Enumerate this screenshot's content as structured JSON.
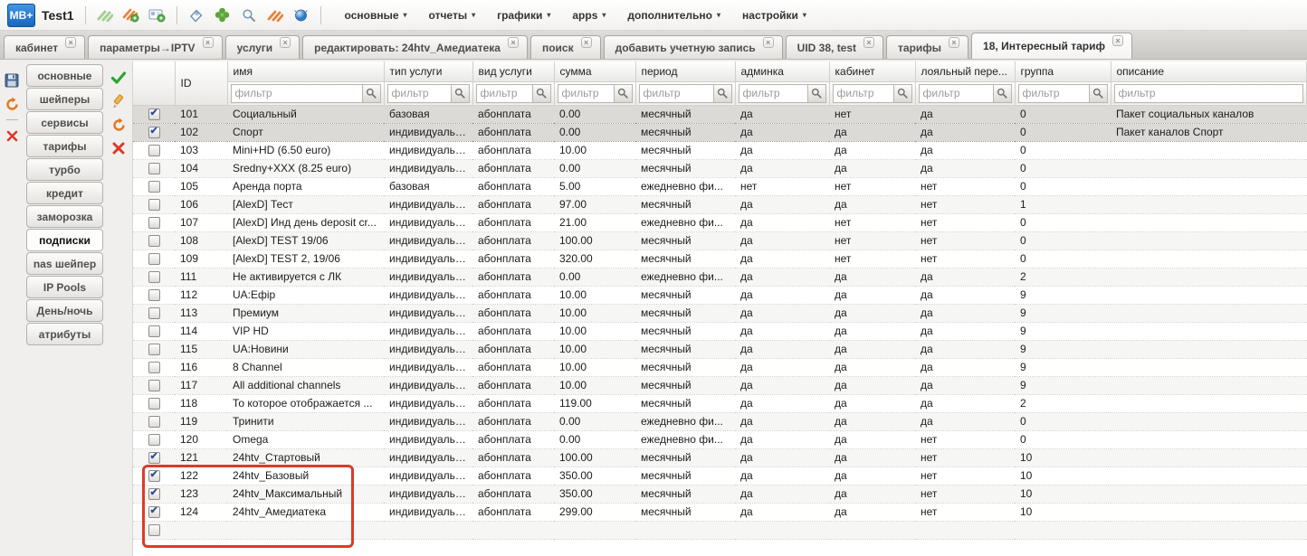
{
  "toolbar": {
    "logo_text": "MB+",
    "title": "Test1",
    "icons": [
      "stats-green-icon",
      "shaper-add-icon",
      "add-account-icon",
      "tag-icon",
      "clover-icon",
      "search-icon",
      "traffic-orange-icon",
      "network-globe-icon"
    ],
    "menus": [
      {
        "label": "основные"
      },
      {
        "label": "отчеты"
      },
      {
        "label": "графики"
      },
      {
        "label": "apps"
      },
      {
        "label": "дополнительно"
      },
      {
        "label": "настройки"
      }
    ]
  },
  "tabs": [
    {
      "label": "кабинет",
      "active": false
    },
    {
      "label": "параметры→IPTV",
      "active": false
    },
    {
      "label": "услуги",
      "active": false
    },
    {
      "label": "редактировать: 24htv_Амедиатека",
      "active": false
    },
    {
      "label": "поиск",
      "active": false
    },
    {
      "label": "добавить учетную запись",
      "active": false
    },
    {
      "label": "UID 38, test",
      "active": false
    },
    {
      "label": "тарифы",
      "active": false
    },
    {
      "label": "18, Интересный тариф",
      "active": true
    }
  ],
  "left_actions": [
    "save-icon",
    "refresh-icon",
    "delete-icon"
  ],
  "sidebar": {
    "items": [
      {
        "label": "основные",
        "active": false
      },
      {
        "label": "шейперы",
        "active": false
      },
      {
        "label": "сервисы",
        "active": false
      },
      {
        "label": "тарифы",
        "active": false
      },
      {
        "label": "турбо",
        "active": false
      },
      {
        "label": "кредит",
        "active": false
      },
      {
        "label": "заморозка",
        "active": false
      },
      {
        "label": "подписки",
        "active": true
      },
      {
        "label": "nas шейпер",
        "active": false
      },
      {
        "label": "IP Pools",
        "active": false
      },
      {
        "label": "День/ночь",
        "active": false
      },
      {
        "label": "атрибуты",
        "active": false
      }
    ]
  },
  "row_actions": [
    "apply-check-icon",
    "edit-pencil-icon",
    "refresh-icon",
    "delete-cross-icon"
  ],
  "table": {
    "filter_placeholder": "фильтр",
    "columns": [
      {
        "label": "",
        "filter": false
      },
      {
        "label": "ID",
        "filter": false
      },
      {
        "label": "имя",
        "filter": true,
        "button": true
      },
      {
        "label": "тип услуги",
        "filter": true,
        "button": true
      },
      {
        "label": "вид услуги",
        "filter": true,
        "button": true
      },
      {
        "label": "сумма",
        "filter": true,
        "button": true
      },
      {
        "label": "период",
        "filter": true,
        "button": true
      },
      {
        "label": "админка",
        "filter": true,
        "button": true
      },
      {
        "label": "кабинет",
        "filter": true,
        "button": true
      },
      {
        "label": "лояльный пере...",
        "filter": true,
        "button": true
      },
      {
        "label": "группа",
        "filter": true,
        "button": true
      },
      {
        "label": "описание",
        "filter": true,
        "button": false
      }
    ],
    "rows": [
      {
        "checked": true,
        "selected": true,
        "annotated": false,
        "cells": [
          "101",
          "Социальный",
          "базовая",
          "абонплата",
          "0.00",
          "месячный",
          "да",
          "нет",
          "да",
          "0",
          "Пакет социальных каналов"
        ]
      },
      {
        "checked": true,
        "selected": true,
        "annotated": false,
        "cells": [
          "102",
          "Спорт",
          "индивидуальная",
          "абонплата",
          "0.00",
          "месячный",
          "да",
          "да",
          "да",
          "0",
          "Пакет каналов Спорт"
        ]
      },
      {
        "checked": false,
        "selected": false,
        "annotated": false,
        "cells": [
          "103",
          "Mini+HD (6.50 euro)",
          "индивидуальная",
          "абонплата",
          "10.00",
          "месячный",
          "да",
          "да",
          "да",
          "0",
          ""
        ]
      },
      {
        "checked": false,
        "selected": false,
        "annotated": false,
        "cells": [
          "104",
          "Sredny+XXX (8.25 euro)",
          "индивидуальная",
          "абонплата",
          "0.00",
          "месячный",
          "да",
          "да",
          "да",
          "0",
          ""
        ]
      },
      {
        "checked": false,
        "selected": false,
        "annotated": false,
        "cells": [
          "105",
          "Аренда порта",
          "базовая",
          "абонплата",
          "5.00",
          "ежедневно фи...",
          "нет",
          "нет",
          "нет",
          "0",
          ""
        ]
      },
      {
        "checked": false,
        "selected": false,
        "annotated": false,
        "cells": [
          "106",
          "[AlexD] Тест",
          "индивидуальная",
          "абонплата",
          "97.00",
          "месячный",
          "да",
          "да",
          "нет",
          "1",
          ""
        ]
      },
      {
        "checked": false,
        "selected": false,
        "annotated": false,
        "cells": [
          "107",
          "[AlexD] Инд день deposit cr...",
          "индивидуальная",
          "абонплата",
          "21.00",
          "ежедневно фи...",
          "да",
          "нет",
          "нет",
          "0",
          ""
        ]
      },
      {
        "checked": false,
        "selected": false,
        "annotated": false,
        "cells": [
          "108",
          "[AlexD] TEST 19/06",
          "индивидуальная",
          "абонплата",
          "100.00",
          "месячный",
          "да",
          "нет",
          "нет",
          "0",
          ""
        ]
      },
      {
        "checked": false,
        "selected": false,
        "annotated": false,
        "cells": [
          "109",
          "[AlexD] TEST 2, 19/06",
          "индивидуальная",
          "абонплата",
          "320.00",
          "месячный",
          "да",
          "нет",
          "нет",
          "0",
          ""
        ]
      },
      {
        "checked": false,
        "selected": false,
        "annotated": false,
        "cells": [
          "111",
          "Не активируется с ЛК",
          "индивидуальная",
          "абонплата",
          "0.00",
          "ежедневно фи...",
          "да",
          "да",
          "да",
          "2",
          ""
        ]
      },
      {
        "checked": false,
        "selected": false,
        "annotated": false,
        "cells": [
          "112",
          "UA:Ефір",
          "индивидуальная",
          "абонплата",
          "10.00",
          "месячный",
          "да",
          "да",
          "да",
          "9",
          ""
        ]
      },
      {
        "checked": false,
        "selected": false,
        "annotated": false,
        "cells": [
          "113",
          "Премиум",
          "индивидуальная",
          "абонплата",
          "10.00",
          "месячный",
          "да",
          "да",
          "да",
          "9",
          ""
        ]
      },
      {
        "checked": false,
        "selected": false,
        "annotated": false,
        "cells": [
          "114",
          "VIP HD",
          "индивидуальная",
          "абонплата",
          "10.00",
          "месячный",
          "да",
          "да",
          "да",
          "9",
          ""
        ]
      },
      {
        "checked": false,
        "selected": false,
        "annotated": false,
        "cells": [
          "115",
          "UA:Новини",
          "индивидуальная",
          "абонплата",
          "10.00",
          "месячный",
          "да",
          "да",
          "да",
          "9",
          ""
        ]
      },
      {
        "checked": false,
        "selected": false,
        "annotated": false,
        "cells": [
          "116",
          "8 Channel",
          "индивидуальная",
          "абонплата",
          "10.00",
          "месячный",
          "да",
          "да",
          "да",
          "9",
          ""
        ]
      },
      {
        "checked": false,
        "selected": false,
        "annotated": false,
        "cells": [
          "117",
          "All additional channels",
          "индивидуальная",
          "абонплата",
          "10.00",
          "месячный",
          "да",
          "да",
          "да",
          "9",
          ""
        ]
      },
      {
        "checked": false,
        "selected": false,
        "annotated": false,
        "cells": [
          "118",
          "То которое отображается ...",
          "индивидуальная",
          "абонплата",
          "119.00",
          "месячный",
          "да",
          "да",
          "да",
          "2",
          ""
        ]
      },
      {
        "checked": false,
        "selected": false,
        "annotated": false,
        "cells": [
          "119",
          "Тринити",
          "индивидуальная",
          "абонплата",
          "0.00",
          "ежедневно фи...",
          "да",
          "да",
          "да",
          "0",
          ""
        ]
      },
      {
        "checked": false,
        "selected": false,
        "annotated": false,
        "cells": [
          "120",
          "Omega",
          "индивидуальная",
          "абонплата",
          "0.00",
          "ежедневно фи...",
          "да",
          "да",
          "нет",
          "0",
          ""
        ]
      },
      {
        "checked": true,
        "selected": false,
        "annotated": true,
        "cells": [
          "121",
          "24htv_Стартовый",
          "индивидуальная",
          "абонплата",
          "100.00",
          "месячный",
          "да",
          "да",
          "нет",
          "10",
          ""
        ]
      },
      {
        "checked": true,
        "selected": false,
        "annotated": true,
        "cells": [
          "122",
          "24htv_Базовый",
          "индивидуальная",
          "абонплата",
          "350.00",
          "месячный",
          "да",
          "да",
          "нет",
          "10",
          ""
        ]
      },
      {
        "checked": true,
        "selected": false,
        "annotated": true,
        "cells": [
          "123",
          "24htv_Максимальный",
          "индивидуальная",
          "абонплата",
          "350.00",
          "месячный",
          "да",
          "да",
          "нет",
          "10",
          ""
        ]
      },
      {
        "checked": true,
        "selected": false,
        "annotated": true,
        "cells": [
          "124",
          "24htv_Амедиатека",
          "индивидуальная",
          "абонплата",
          "299.00",
          "месячный",
          "да",
          "да",
          "нет",
          "10",
          ""
        ]
      },
      {
        "checked": false,
        "selected": false,
        "annotated": false,
        "cells": [
          "",
          "",
          "",
          "",
          "",
          "",
          "",
          "",
          "",
          "",
          ""
        ]
      }
    ]
  },
  "annotation": {
    "color": "#da3b2b"
  }
}
